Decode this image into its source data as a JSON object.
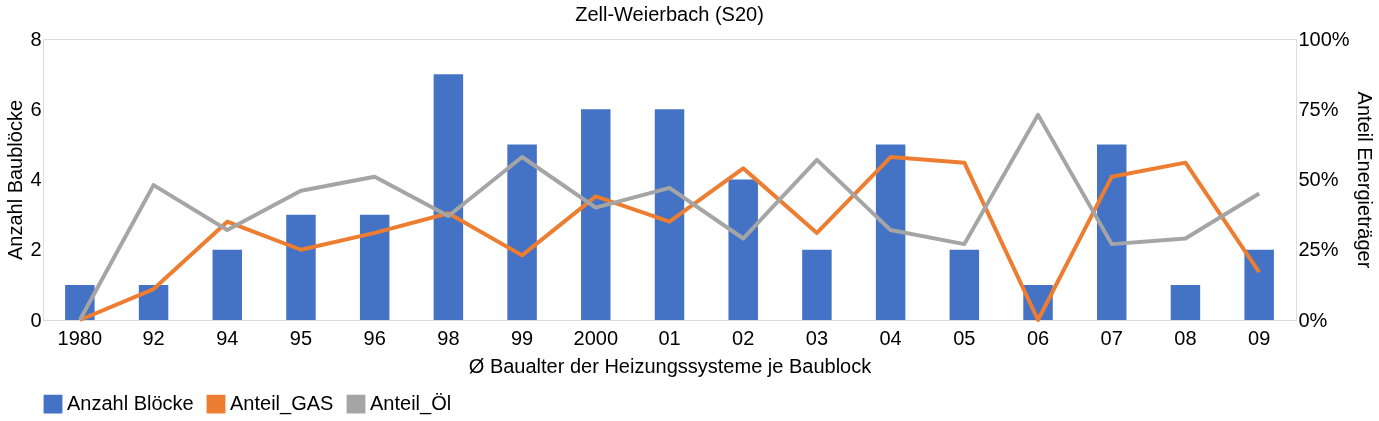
{
  "chart_data": {
    "type": "bar",
    "title": "Zell-Weierbach (S20)",
    "xlabel": "Ø Baualter der Heizungssysteme je Baublock",
    "ylabel": "Anzahl Baublöcke",
    "y2label": "Anteil Energieträger",
    "categories": [
      "1980",
      "92",
      "94",
      "95",
      "96",
      "98",
      "99",
      "2000",
      "01",
      "02",
      "03",
      "04",
      "05",
      "06",
      "07",
      "08",
      "09"
    ],
    "series": [
      {
        "name": "Anzahl Blöcke",
        "color": "#4472c4",
        "values": [
          1,
          1,
          2,
          3,
          3,
          7,
          5,
          6,
          6,
          4,
          2,
          5,
          2,
          1,
          5,
          1,
          2
        ]
      },
      {
        "name": "Anteil_GAS",
        "type": "line",
        "axis": "y2",
        "color": "#ed7d31",
        "values": [
          0,
          11,
          35,
          25,
          31,
          38,
          23,
          44,
          35,
          54,
          31,
          58,
          56,
          0,
          51,
          56,
          17
        ]
      },
      {
        "name": "Anteil_Öl",
        "type": "line",
        "axis": "y2",
        "color": "#a5a5a5",
        "values": [
          0,
          48,
          32,
          46,
          51,
          37,
          58,
          40,
          47,
          29,
          57,
          32,
          27,
          73,
          27,
          29,
          45
        ]
      }
    ],
    "ylim": [
      0,
      8
    ],
    "yticks": [
      0,
      2,
      4,
      6,
      8
    ],
    "y2lim": [
      0,
      100
    ],
    "y2ticks": [
      {
        "value": 0,
        "label": "0%"
      },
      {
        "value": 25,
        "label": "25%"
      },
      {
        "value": 50,
        "label": "50%"
      },
      {
        "value": 75,
        "label": "75%"
      },
      {
        "value": 100,
        "label": "100%"
      }
    ],
    "grid": false,
    "legend": "bottom",
    "marker": "none",
    "line_style": "solid"
  }
}
